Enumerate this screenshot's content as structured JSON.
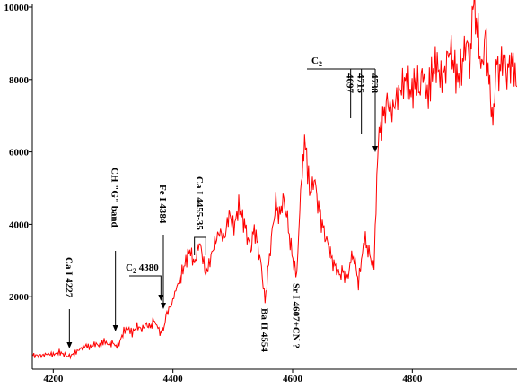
{
  "chart_data": {
    "type": "line",
    "title": "",
    "xlabel": "",
    "ylabel": "",
    "xlim": [
      4165,
      4975
    ],
    "ylim": [
      0,
      10000
    ],
    "xticks": [
      4200,
      4400,
      4600,
      4800
    ],
    "yticks": [
      2000,
      4000,
      6000,
      8000,
      10000
    ],
    "grid": false,
    "legend": "none",
    "line_color": "#ff0000",
    "series": [
      {
        "points": [
          [
            4166,
            380
          ],
          [
            4180,
            370
          ],
          [
            4190,
            420
          ],
          [
            4200,
            400
          ],
          [
            4210,
            470
          ],
          [
            4218,
            400
          ],
          [
            4227,
            350
          ],
          [
            4235,
            430
          ],
          [
            4245,
            560
          ],
          [
            4255,
            650
          ],
          [
            4262,
            600
          ],
          [
            4270,
            700
          ],
          [
            4278,
            650
          ],
          [
            4285,
            780
          ],
          [
            4292,
            680
          ],
          [
            4300,
            730
          ],
          [
            4305,
            620
          ],
          [
            4310,
            700
          ],
          [
            4318,
            1050
          ],
          [
            4325,
            1120
          ],
          [
            4332,
            1000
          ],
          [
            4340,
            1180
          ],
          [
            4348,
            1100
          ],
          [
            4356,
            1250
          ],
          [
            4362,
            1150
          ],
          [
            4368,
            1350
          ],
          [
            4375,
            1150
          ],
          [
            4380,
            950
          ],
          [
            4384,
            1100
          ],
          [
            4390,
            1550
          ],
          [
            4398,
            1800
          ],
          [
            4405,
            2200
          ],
          [
            4412,
            2500
          ],
          [
            4420,
            2900
          ],
          [
            4428,
            3300
          ],
          [
            4436,
            2900
          ],
          [
            4444,
            3500
          ],
          [
            4450,
            3100
          ],
          [
            4455,
            2600
          ],
          [
            4462,
            3000
          ],
          [
            4470,
            3500
          ],
          [
            4478,
            3800
          ],
          [
            4486,
            3600
          ],
          [
            4494,
            4300
          ],
          [
            4502,
            3900
          ],
          [
            4510,
            4500
          ],
          [
            4518,
            4100
          ],
          [
            4524,
            3700
          ],
          [
            4530,
            3300
          ],
          [
            4536,
            3900
          ],
          [
            4542,
            3400
          ],
          [
            4548,
            2800
          ],
          [
            4554,
            1850
          ],
          [
            4560,
            2900
          ],
          [
            4566,
            3800
          ],
          [
            4572,
            4600
          ],
          [
            4578,
            4200
          ],
          [
            4584,
            4700
          ],
          [
            4590,
            4300
          ],
          [
            4596,
            3500
          ],
          [
            4602,
            2900
          ],
          [
            4607,
            2600
          ],
          [
            4612,
            4400
          ],
          [
            4616,
            5300
          ],
          [
            4620,
            6500
          ],
          [
            4625,
            5500
          ],
          [
            4630,
            4800
          ],
          [
            4636,
            5300
          ],
          [
            4642,
            4600
          ],
          [
            4648,
            4100
          ],
          [
            4654,
            3700
          ],
          [
            4660,
            3400
          ],
          [
            4666,
            3000
          ],
          [
            4672,
            2800
          ],
          [
            4678,
            2600
          ],
          [
            4684,
            2700
          ],
          [
            4690,
            2500
          ],
          [
            4696,
            2800
          ],
          [
            4700,
            3200
          ],
          [
            4706,
            2800
          ],
          [
            4710,
            2400
          ],
          [
            4715,
            3000
          ],
          [
            4720,
            3600
          ],
          [
            4726,
            3300
          ],
          [
            4732,
            3000
          ],
          [
            4736,
            2800
          ],
          [
            4738,
            4000
          ],
          [
            4742,
            5800
          ],
          [
            4746,
            6600
          ],
          [
            4752,
            7000
          ],
          [
            4758,
            7400
          ],
          [
            4766,
            7100
          ],
          [
            4774,
            7500
          ],
          [
            4782,
            7800
          ],
          [
            4790,
            8000
          ],
          [
            4798,
            7600
          ],
          [
            4806,
            8000
          ],
          [
            4812,
            7700
          ],
          [
            4818,
            8200
          ],
          [
            4825,
            7500
          ],
          [
            4832,
            8100
          ],
          [
            4840,
            8500
          ],
          [
            4848,
            8000
          ],
          [
            4856,
            8300
          ],
          [
            4862,
            8900
          ],
          [
            4868,
            8500
          ],
          [
            4876,
            8000
          ],
          [
            4884,
            8400
          ],
          [
            4890,
            9100
          ],
          [
            4896,
            8500
          ],
          [
            4900,
            9600
          ],
          [
            4904,
            10000
          ],
          [
            4910,
            9200
          ],
          [
            4916,
            8200
          ],
          [
            4922,
            9300
          ],
          [
            4928,
            8000
          ],
          [
            4932,
            6900
          ],
          [
            4936,
            7300
          ],
          [
            4940,
            8400
          ],
          [
            4946,
            8200
          ],
          [
            4952,
            8700
          ],
          [
            4958,
            8100
          ],
          [
            4964,
            8500
          ],
          [
            4970,
            8300
          ],
          [
            4975,
            7800
          ]
        ]
      }
    ],
    "annotations": {
      "ca4227": {
        "text": "Ca I 4227",
        "x": 4227
      },
      "ch_band": {
        "text": "CH  \"G\"  band",
        "x": 4304
      },
      "c2_4380": {
        "main": "C",
        "sub": "2",
        "rest": " 4380",
        "x": 4380
      },
      "fe4384": {
        "text": "Fe I 4384",
        "x": 4384
      },
      "ca4455": {
        "text": "Ca I 4455-35",
        "x1": 4436,
        "x2": 4455
      },
      "ba4554": {
        "text": "Ba II 4554",
        "x": 4554
      },
      "sr4607": {
        "text": "Sr I 4607+CN ?",
        "x": 4607
      },
      "c2_group": {
        "main": "C",
        "sub": "2",
        "bands": [
          "4697",
          "4715",
          "4738"
        ],
        "xs": [
          4697,
          4715,
          4738
        ]
      }
    }
  }
}
